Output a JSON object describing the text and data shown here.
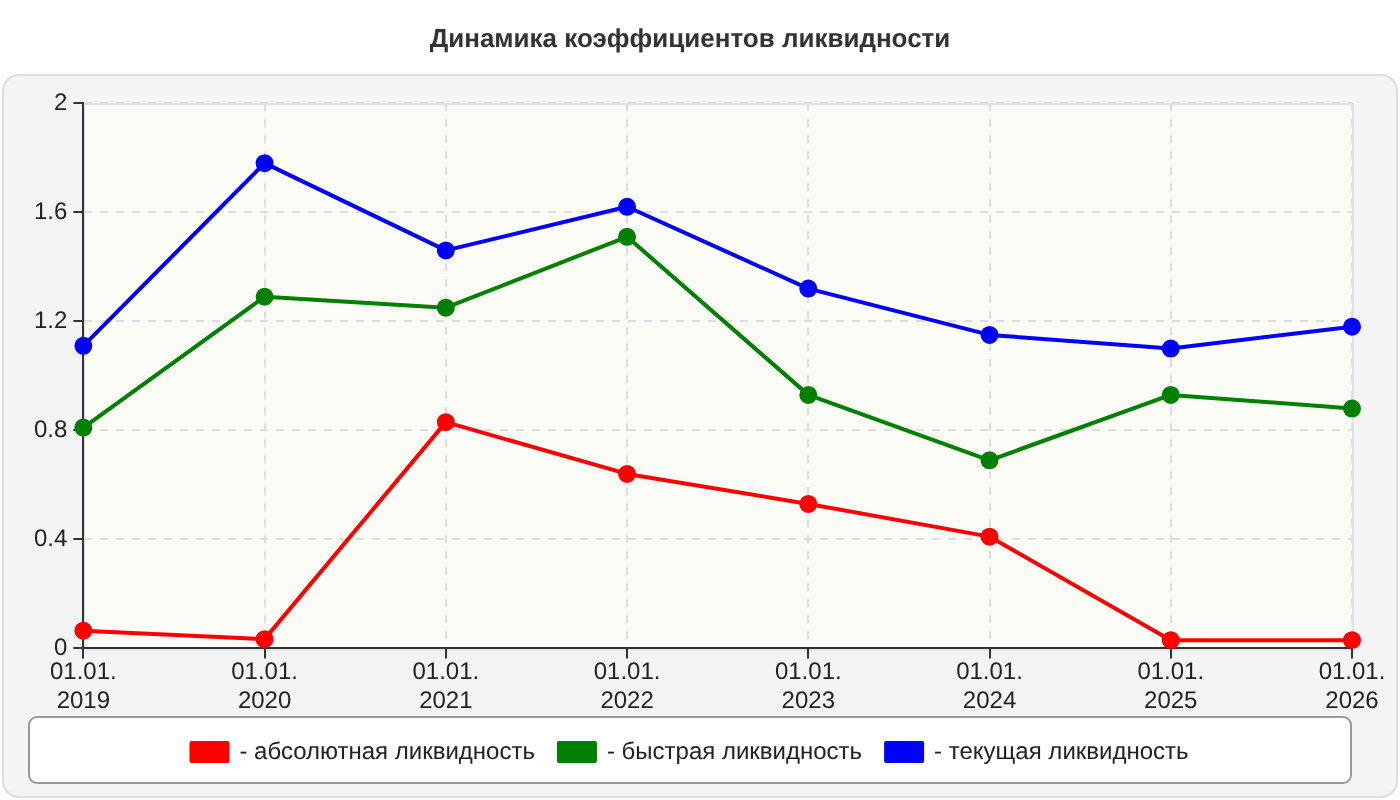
{
  "chart_data": {
    "type": "line",
    "title": "Динамика коэффициентов ликвидности",
    "categories": [
      "01.01.\n2019",
      "01.01.\n2020",
      "01.01.\n2021",
      "01.01.\n2022",
      "01.01.\n2023",
      "01.01.\n2024",
      "01.01.\n2025",
      "01.01.\n2026"
    ],
    "series": [
      {
        "name": "- абсолютная ликвидность",
        "color": "#ff0000",
        "values": [
          0.065,
          0.034,
          0.83,
          0.64,
          0.53,
          0.41,
          0.03,
          0.03
        ]
      },
      {
        "name": "- быстрая ликвидность",
        "color": "#008000",
        "values": [
          0.81,
          1.29,
          1.25,
          1.51,
          0.93,
          0.69,
          0.93,
          0.88
        ]
      },
      {
        "name": "- текущая ликвидность",
        "color": "#0000ff",
        "values": [
          1.11,
          1.78,
          1.46,
          1.62,
          1.32,
          1.15,
          1.1,
          1.18
        ]
      }
    ],
    "ylim": [
      0,
      2
    ],
    "yticks": [
      0,
      0.4,
      0.8,
      1.2,
      1.6,
      2
    ],
    "grid": true,
    "legend": "bottom",
    "marker": "circle",
    "line_style": "solid"
  }
}
